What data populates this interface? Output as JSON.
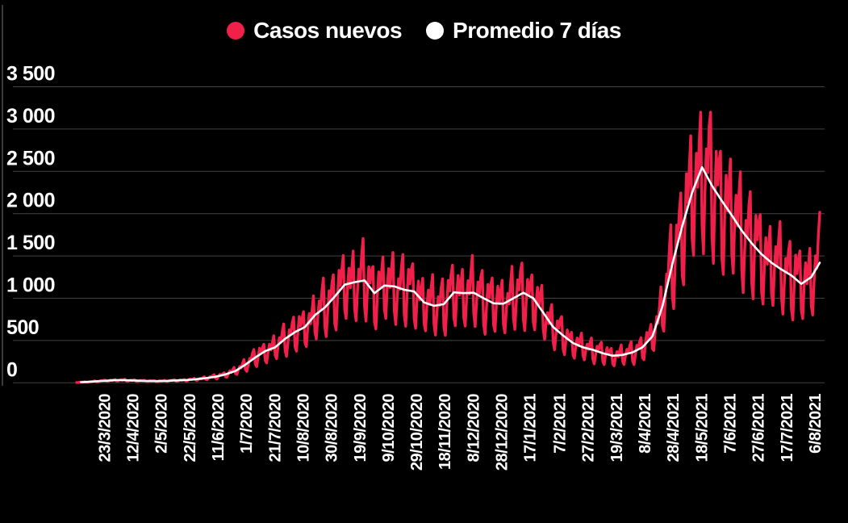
{
  "chart_data": {
    "type": "line",
    "title": "",
    "background_color": "#000000",
    "gridline_color": "#434343",
    "grid": "horizontal",
    "legend_position": "top-center",
    "y_axis": {
      "range": [
        0,
        3500
      ],
      "ticks": [
        0,
        500,
        1000,
        1500,
        2000,
        2500,
        3000,
        3500
      ],
      "tick_labels": [
        "0",
        "500",
        "1 000",
        "1 500",
        "2 000",
        "2 500",
        "3 000",
        "3 500"
      ]
    },
    "x_axis": {
      "tick_labels": [
        "23/3/2020",
        "12/4/2020",
        "2/5/2020",
        "22/5/2020",
        "11/6/2020",
        "1/7/2020",
        "21/7/2020",
        "10/8/2020",
        "30/8/2020",
        "19/9/2020",
        "9/10/2020",
        "29/10/2020",
        "18/11/2020",
        "8/12/2020",
        "28/12/2020",
        "17/1/2021",
        "7/2/2021",
        "27/2/2021",
        "19/3/2021",
        "8/4/2021",
        "28/4/2021",
        "18/5/2021",
        "7/6/2021",
        "27/6/2021",
        "17/7/2021",
        "6/8/2021"
      ],
      "tick_day_index": [
        19,
        39,
        59,
        79,
        99,
        119,
        139,
        159,
        179,
        199,
        219,
        239,
        259,
        279,
        299,
        319,
        340,
        360,
        380,
        400,
        420,
        440,
        460,
        480,
        500,
        520
      ],
      "day_index_domain": [
        0,
        524
      ]
    },
    "series": [
      {
        "name": "Casos nuevos",
        "color": "#F0204A",
        "role": "daily-cases",
        "derived_from": "7-day average times weekday multipliers (weekly reporting oscillation read from chart)",
        "weekday_multipliers": [
          0.73,
          0.62,
          0.94,
          1.17,
          1.01,
          1.2,
          1.33
        ],
        "jitter": {
          "a1": 0.04,
          "f1": 1.13,
          "a2": 0.03,
          "f2": 0.41
        },
        "observed_max_daily": 3190,
        "observed_min_daily": 0,
        "max_cap": 3200
      },
      {
        "name": "Promedio 7 días",
        "color": "#FFFFFF",
        "role": "7-day-average",
        "observed_peak_average": 2550,
        "points_day_value": [
          [
            0,
            5
          ],
          [
            7,
            10
          ],
          [
            14,
            18
          ],
          [
            21,
            25
          ],
          [
            28,
            32
          ],
          [
            35,
            30
          ],
          [
            42,
            26
          ],
          [
            49,
            22
          ],
          [
            56,
            20
          ],
          [
            63,
            22
          ],
          [
            70,
            28
          ],
          [
            77,
            32
          ],
          [
            84,
            42
          ],
          [
            91,
            55
          ],
          [
            98,
            72
          ],
          [
            105,
            100
          ],
          [
            112,
            140
          ],
          [
            119,
            215
          ],
          [
            126,
            300
          ],
          [
            133,
            375
          ],
          [
            140,
            420
          ],
          [
            147,
            520
          ],
          [
            154,
            600
          ],
          [
            161,
            660
          ],
          [
            168,
            800
          ],
          [
            175,
            890
          ],
          [
            182,
            1020
          ],
          [
            189,
            1160
          ],
          [
            196,
            1190
          ],
          [
            203,
            1210
          ],
          [
            210,
            1060
          ],
          [
            217,
            1150
          ],
          [
            224,
            1140
          ],
          [
            231,
            1100
          ],
          [
            238,
            1080
          ],
          [
            245,
            950
          ],
          [
            252,
            910
          ],
          [
            259,
            930
          ],
          [
            266,
            1070
          ],
          [
            273,
            1060
          ],
          [
            280,
            1065
          ],
          [
            287,
            1000
          ],
          [
            294,
            940
          ],
          [
            301,
            935
          ],
          [
            308,
            1000
          ],
          [
            315,
            1065
          ],
          [
            322,
            1000
          ],
          [
            329,
            830
          ],
          [
            336,
            660
          ],
          [
            343,
            560
          ],
          [
            350,
            470
          ],
          [
            357,
            420
          ],
          [
            364,
            390
          ],
          [
            371,
            350
          ],
          [
            378,
            320
          ],
          [
            385,
            330
          ],
          [
            392,
            360
          ],
          [
            399,
            420
          ],
          [
            406,
            550
          ],
          [
            413,
            900
          ],
          [
            420,
            1400
          ],
          [
            427,
            1850
          ],
          [
            434,
            2250
          ],
          [
            441,
            2550
          ],
          [
            448,
            2330
          ],
          [
            455,
            2150
          ],
          [
            462,
            1980
          ],
          [
            469,
            1800
          ],
          [
            476,
            1650
          ],
          [
            483,
            1520
          ],
          [
            490,
            1420
          ],
          [
            497,
            1340
          ],
          [
            504,
            1270
          ],
          [
            511,
            1170
          ],
          [
            518,
            1250
          ],
          [
            524,
            1420
          ]
        ]
      }
    ]
  }
}
